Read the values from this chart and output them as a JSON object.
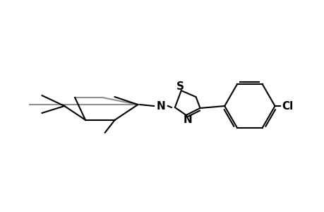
{
  "background_color": "#ffffff",
  "line_color": "#000000",
  "gray_line_color": "#909090",
  "figsize": [
    4.6,
    3.0
  ],
  "dpi": 100,
  "xlim": [
    0,
    460
  ],
  "ylim": [
    0,
    300
  ]
}
